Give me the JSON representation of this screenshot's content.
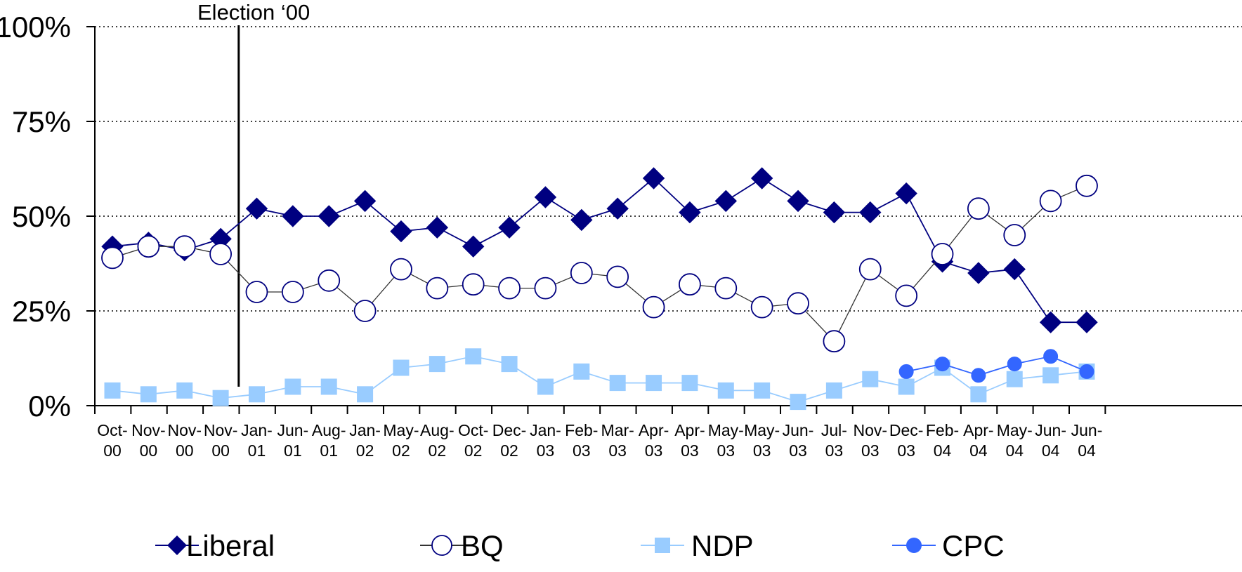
{
  "chart_data": {
    "type": "line",
    "title": "",
    "xlabel": "",
    "ylabel": "",
    "ylim": [
      0,
      100
    ],
    "y_ticks": [
      "0%",
      "25%",
      "50%",
      "75%",
      "100%"
    ],
    "y_tick_values": [
      0,
      25,
      50,
      75,
      100
    ],
    "grid": "horizontal dotted",
    "legend_placement": "bottom",
    "categories": [
      [
        "Oct-",
        "00"
      ],
      [
        "Nov-",
        "00"
      ],
      [
        "Nov-",
        "00"
      ],
      [
        "Nov-",
        "00"
      ],
      [
        "Jan-",
        "01"
      ],
      [
        "Jun-",
        "01"
      ],
      [
        "Aug-",
        "01"
      ],
      [
        "Jan-",
        "02"
      ],
      [
        "May-",
        "02"
      ],
      [
        "Aug-",
        "02"
      ],
      [
        "Oct-",
        "02"
      ],
      [
        "Dec-",
        "02"
      ],
      [
        "Jan-",
        "03"
      ],
      [
        "Feb-",
        "03"
      ],
      [
        "Mar-",
        "03"
      ],
      [
        "Apr-",
        "03"
      ],
      [
        "Apr-",
        "03"
      ],
      [
        "May-",
        "03"
      ],
      [
        "May-",
        "03"
      ],
      [
        "Jun-",
        "03"
      ],
      [
        "Jul-",
        "03"
      ],
      [
        "Nov-",
        "03"
      ],
      [
        "Dec-",
        "03"
      ],
      [
        "Feb-",
        "04"
      ],
      [
        "Apr-",
        "04"
      ],
      [
        "May-",
        "04"
      ],
      [
        "Jun-",
        "04"
      ],
      [
        "Jun-",
        "04"
      ]
    ],
    "annotation": {
      "label": "Election ‘00",
      "after_category_index": 3
    },
    "series": [
      {
        "name": "Liberal",
        "marker": "diamond",
        "color": "#000080",
        "line_color": "#000080",
        "values": [
          42,
          43,
          41,
          44,
          52,
          50,
          50,
          54,
          46,
          47,
          42,
          47,
          55,
          49,
          52,
          60,
          51,
          54,
          60,
          54,
          51,
          51,
          56,
          38,
          35,
          36,
          22,
          22
        ]
      },
      {
        "name": "BQ",
        "marker": "open-circle",
        "color": "#000080",
        "line_color": "#333333",
        "values": [
          39,
          42,
          42,
          40,
          30,
          30,
          33,
          25,
          36,
          31,
          32,
          31,
          31,
          35,
          34,
          26,
          32,
          31,
          26,
          27,
          17,
          36,
          29,
          40,
          52,
          45,
          54,
          58
        ]
      },
      {
        "name": "NDP",
        "marker": "square",
        "color": "#99CCFF",
        "line_color": "#99CCFF",
        "values": [
          4,
          3,
          4,
          2,
          3,
          5,
          5,
          3,
          10,
          11,
          13,
          11,
          5,
          9,
          6,
          6,
          6,
          4,
          4,
          1,
          4,
          7,
          5,
          10,
          3,
          7,
          8,
          9
        ]
      },
      {
        "name": "CPC",
        "marker": "filled-circle",
        "color": "#3366FF",
        "line_color": "#3366FF",
        "values": [
          null,
          null,
          null,
          null,
          null,
          null,
          null,
          null,
          null,
          null,
          null,
          null,
          null,
          null,
          null,
          null,
          null,
          null,
          null,
          null,
          null,
          null,
          9,
          11,
          8,
          11,
          13,
          9
        ]
      }
    ]
  }
}
